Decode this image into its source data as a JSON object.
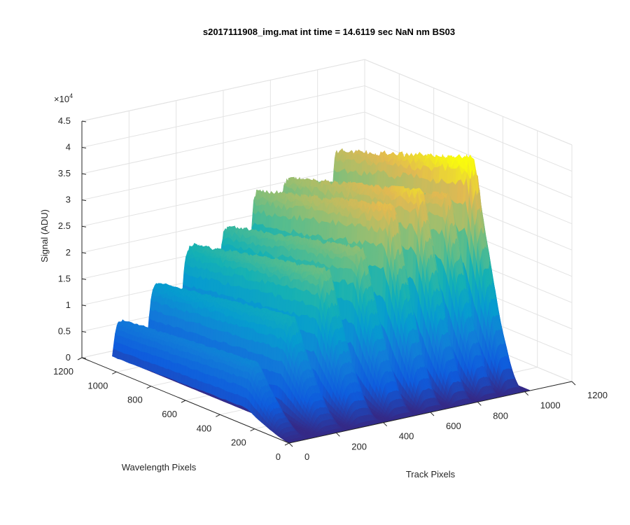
{
  "chart_data": {
    "type": "surface",
    "title": "s2017111908_img.mat int time = 14.6119 sec  NaN nm BS03",
    "xlabel": "Track Pixels",
    "ylabel": "Wavelength Pixels",
    "zlabel": "Signal (ADU)",
    "z_exponent_label": "×10",
    "z_exponent_power": "4",
    "xlim": [
      0,
      1200
    ],
    "ylim": [
      0,
      1200
    ],
    "zlim": [
      0,
      45000
    ],
    "x_ticks": [
      "0",
      "200",
      "400",
      "600",
      "800",
      "1000",
      "1200"
    ],
    "y_ticks": [
      "0",
      "200",
      "400",
      "600",
      "800",
      "1000",
      "1200"
    ],
    "z_ticks": [
      "0",
      "0.5",
      "1",
      "1.5",
      "2",
      "2.5",
      "3",
      "3.5",
      "4",
      "4.5"
    ],
    "grid": true,
    "colormap": "parula",
    "data_extent": {
      "x": [
        0,
        1024
      ],
      "y": [
        0,
        1024
      ]
    },
    "tracks": [
      {
        "center": 40,
        "width": 32,
        "peak": 11500
      },
      {
        "center": 195,
        "width": 38,
        "peak": 18500
      },
      {
        "center": 340,
        "width": 42,
        "peak": 26000
      },
      {
        "center": 490,
        "width": 36,
        "peak": 28500
      },
      {
        "center": 620,
        "width": 34,
        "peak": 35500
      },
      {
        "center": 745,
        "width": 32,
        "peak": 37000
      },
      {
        "center": 860,
        "width": 30,
        "peak": 35000
      },
      {
        "center": 960,
        "width": 30,
        "peak": 41000
      }
    ]
  }
}
